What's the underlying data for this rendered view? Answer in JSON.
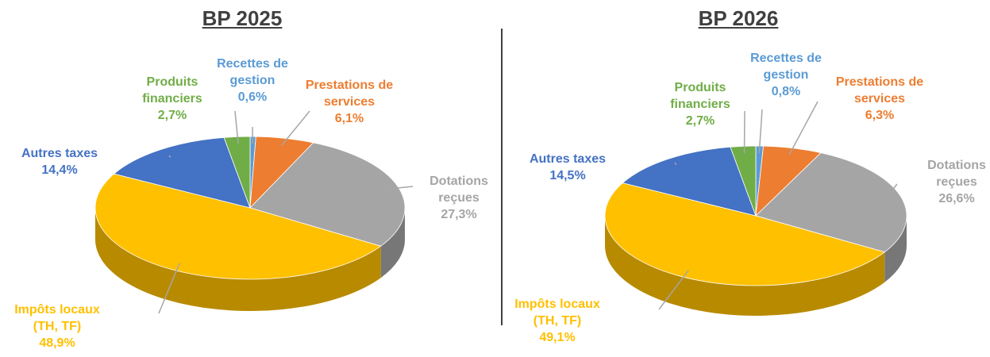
{
  "chart_data": [
    {
      "type": "pie3d",
      "title": "BP 2025",
      "categories": [
        "Recettes de gestion",
        "Prestations de services",
        "Dotations reçues",
        "Impôts locaux (TH, TF)",
        "Autres taxes",
        "Produits financiers"
      ],
      "values": [
        0.6,
        6.1,
        27.3,
        48.9,
        14.4,
        2.7
      ],
      "value_labels": [
        "0,6%",
        "6,1%",
        "27,3%",
        "48,9%",
        "14,4%",
        "2,7%"
      ],
      "colors": [
        "#5b9bd5",
        "#ed7d31",
        "#a5a5a5",
        "#ffc000",
        "#4472c4",
        "#70ad47"
      ]
    },
    {
      "type": "pie3d",
      "title": "BP 2026",
      "categories": [
        "Recettes de gestion",
        "Prestations de services",
        "Dotations reçues",
        "Impôts locaux (TH, TF)",
        "Autres taxes",
        "Produits financiers"
      ],
      "values": [
        0.8,
        6.3,
        26.6,
        49.1,
        14.5,
        2.7
      ],
      "value_labels": [
        "0,8%",
        "6,3%",
        "26,6%",
        "49,1%",
        "14,5%",
        "2,7%"
      ],
      "colors": [
        "#5b9bd5",
        "#ed7d31",
        "#a5a5a5",
        "#ffc000",
        "#4472c4",
        "#70ad47"
      ]
    }
  ]
}
